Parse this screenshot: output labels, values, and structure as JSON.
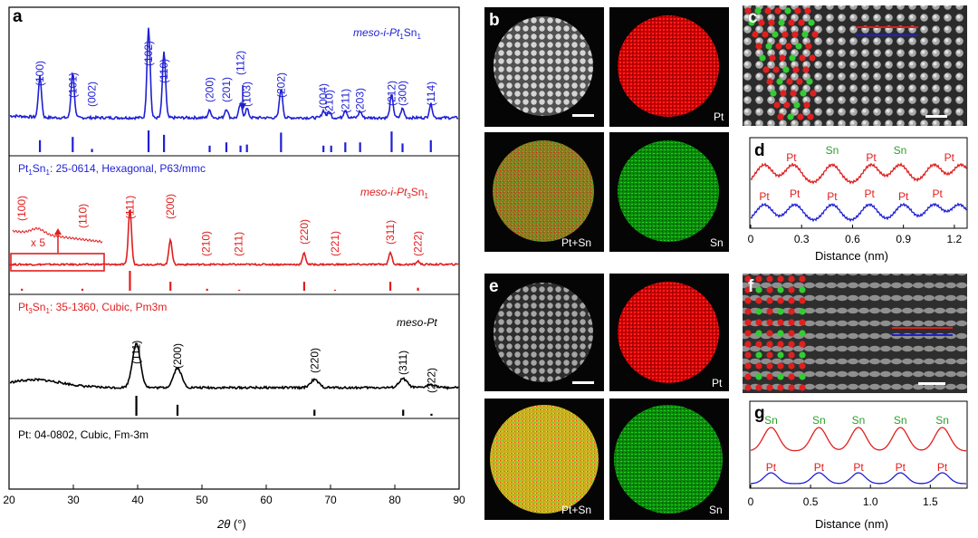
{
  "panels": {
    "a": "a",
    "b": "b",
    "c": "c",
    "d": "d",
    "e": "e",
    "f": "f",
    "g": "g"
  },
  "image_labels": {
    "pt": "Pt",
    "sn": "Sn",
    "ptsn": "Pt+Sn"
  },
  "xrd": {
    "xlabel_italic": "2θ",
    "xlabel_unit": " (°)",
    "xticks": [
      "20",
      "30",
      "40",
      "50",
      "60",
      "70",
      "80",
      "90"
    ],
    "series_labels": {
      "ptsn_prefix": "meso-i-Pt",
      "ptsn_sub1": "1",
      "ptsn_mid": "Sn",
      "ptsn_sub2": "1",
      "pt3sn_prefix": "meso-i-Pt",
      "pt3sn_sub1": "3",
      "pt3sn_mid": "Sn",
      "pt3sn_sub2": "1",
      "pt": "meso-Pt"
    },
    "refs": {
      "ptsn_a": "Pt",
      "ptsn_s1": "1",
      "ptsn_b": "Sn",
      "ptsn_s2": "1",
      "ptsn_c": ": 25-0614, Hexagonal, P63/mmc",
      "pt3sn_a": "Pt",
      "pt3sn_s1": "3",
      "pt3sn_b": "Sn",
      "pt3sn_s2": "1",
      "pt3sn_c": ": 35-1360, Cubic, Pm3m",
      "pt": "Pt: 04-0802, Cubic, Fm-3m"
    },
    "inset_label": "x 5",
    "colors": {
      "ptsn": "#1f1fd6",
      "pt3sn": "#e01e1e",
      "pt": "#000000"
    }
  },
  "chart_data": [
    {
      "type": "line",
      "title": "",
      "xlabel": "2θ (°)",
      "ylabel": "",
      "xlim": [
        20,
        90
      ],
      "series": [
        {
          "name": "meso-i-Pt1Sn1",
          "peaks": [
            {
              "x": 24.8,
              "hkl": "(100)",
              "h": 0.45
            },
            {
              "x": 29.9,
              "hkl": "(101)",
              "h": 0.5
            },
            {
              "x": 32.9,
              "hkl": "(002)",
              "h": 0.0
            },
            {
              "x": 41.7,
              "hkl": "(102)",
              "h": 1.0
            },
            {
              "x": 44.1,
              "hkl": "(110)",
              "h": 0.72
            },
            {
              "x": 51.2,
              "hkl": "(200)",
              "h": 0.08
            },
            {
              "x": 53.8,
              "hkl": "(201)",
              "h": 0.1
            },
            {
              "x": 56.0,
              "hkl": "(112)",
              "h": 0.15
            },
            {
              "x": 57.0,
              "hkl": "(103)",
              "h": 0.1
            },
            {
              "x": 62.3,
              "hkl": "(202)",
              "h": 0.32
            },
            {
              "x": 68.9,
              "hkl": "(004)",
              "h": 0.08
            },
            {
              "x": 69.8,
              "hkl": "(210)",
              "h": 0.07
            },
            {
              "x": 72.3,
              "hkl": "(211)",
              "h": 0.09
            },
            {
              "x": 74.6,
              "hkl": "(203)",
              "h": 0.07
            },
            {
              "x": 79.5,
              "hkl": "(212)",
              "h": 0.25
            },
            {
              "x": 81.2,
              "hkl": "(300)",
              "h": 0.1
            },
            {
              "x": 85.6,
              "hkl": "(114)",
              "h": 0.15
            }
          ],
          "ref_lines": [
            {
              "x": 24.8,
              "h": 0.55
            },
            {
              "x": 29.9,
              "h": 0.7
            },
            {
              "x": 32.9,
              "h": 0.15
            },
            {
              "x": 41.7,
              "h": 1.0
            },
            {
              "x": 44.1,
              "h": 0.8
            },
            {
              "x": 51.2,
              "h": 0.3
            },
            {
              "x": 53.8,
              "h": 0.45
            },
            {
              "x": 56.0,
              "h": 0.3
            },
            {
              "x": 57.0,
              "h": 0.35
            },
            {
              "x": 62.3,
              "h": 0.9
            },
            {
              "x": 68.9,
              "h": 0.3
            },
            {
              "x": 70.1,
              "h": 0.3
            },
            {
              "x": 72.3,
              "h": 0.45
            },
            {
              "x": 74.6,
              "h": 0.45
            },
            {
              "x": 79.5,
              "h": 0.95
            },
            {
              "x": 81.2,
              "h": 0.4
            },
            {
              "x": 85.6,
              "h": 0.55
            }
          ]
        },
        {
          "name": "meso-i-Pt3Sn1",
          "peaks": [
            {
              "x": 22.0,
              "hkl": "(100)",
              "h": 0.0
            },
            {
              "x": 31.5,
              "hkl": "(110)",
              "h": 0.0
            },
            {
              "x": 38.8,
              "hkl": "(111)",
              "h": 1.0
            },
            {
              "x": 45.1,
              "hkl": "(200)",
              "h": 0.45
            },
            {
              "x": 50.6,
              "hkl": "(210)",
              "h": 0.0
            },
            {
              "x": 55.7,
              "hkl": "(211)",
              "h": 0.0
            },
            {
              "x": 65.9,
              "hkl": "(220)",
              "h": 0.2
            },
            {
              "x": 70.7,
              "hkl": "(221)",
              "h": 0.0
            },
            {
              "x": 79.3,
              "hkl": "(311)",
              "h": 0.22
            },
            {
              "x": 83.6,
              "hkl": "(222)",
              "h": 0.06
            }
          ],
          "ref_lines": [
            {
              "x": 22.0,
              "h": 0.1
            },
            {
              "x": 31.4,
              "h": 0.1
            },
            {
              "x": 38.8,
              "h": 1.0
            },
            {
              "x": 45.1,
              "h": 0.45
            },
            {
              "x": 50.8,
              "h": 0.1
            },
            {
              "x": 55.8,
              "h": 0.05
            },
            {
              "x": 65.9,
              "h": 0.45
            },
            {
              "x": 70.7,
              "h": 0.05
            },
            {
              "x": 79.3,
              "h": 0.45
            },
            {
              "x": 83.6,
              "h": 0.15
            }
          ]
        },
        {
          "name": "meso-Pt",
          "peaks": [
            {
              "x": 39.8,
              "hkl": "(111)",
              "h": 1.0
            },
            {
              "x": 46.2,
              "hkl": "(200)",
              "h": 0.45
            },
            {
              "x": 67.5,
              "hkl": "(220)",
              "h": 0.18
            },
            {
              "x": 81.3,
              "hkl": "(311)",
              "h": 0.2
            },
            {
              "x": 85.7,
              "hkl": "(222)",
              "h": 0.08
            }
          ],
          "ref_lines": [
            {
              "x": 39.8,
              "h": 1.0
            },
            {
              "x": 46.2,
              "h": 0.55
            },
            {
              "x": 67.5,
              "h": 0.3
            },
            {
              "x": 81.3,
              "h": 0.3
            },
            {
              "x": 85.7,
              "h": 0.1
            }
          ]
        }
      ]
    },
    {
      "type": "line",
      "title": "",
      "xlabel": "Distance (nm)",
      "xticks": [
        "0",
        "0.3",
        "0.6",
        "0.9",
        "1.2"
      ],
      "xlim": [
        0,
        1.27
      ],
      "series": [
        {
          "name": "Pt-Sn (red)",
          "peaks_x": [
            0.08,
            0.25,
            0.48,
            0.71,
            0.88,
            1.08,
            1.24
          ],
          "labels": [
            "Pt",
            "Pt",
            "Sn",
            "Pt",
            "Sn",
            "Pt",
            "Pt"
          ]
        },
        {
          "name": "Pt (blue)",
          "peaks_x": [
            0.08,
            0.26,
            0.48,
            0.7,
            0.9,
            1.08,
            1.23
          ],
          "labels": [
            "Pt",
            "Pt",
            "Pt",
            "Pt",
            "Pt",
            "Pt",
            "Pt"
          ]
        }
      ]
    },
    {
      "type": "line",
      "title": "",
      "xlabel": "Distance (nm)",
      "xticks": [
        "0",
        "0.5",
        "1.0",
        "1.5"
      ],
      "xlim": [
        0,
        1.8
      ],
      "series": [
        {
          "name": "Sn (red)",
          "peaks_x": [
            0.17,
            0.57,
            0.9,
            1.25,
            1.6
          ],
          "labels": [
            "Sn",
            "Sn",
            "Sn",
            "Sn",
            "Sn"
          ]
        },
        {
          "name": "Pt (blue)",
          "peaks_x": [
            0.17,
            0.57,
            0.9,
            1.25,
            1.6
          ],
          "labels": [
            "Pt",
            "Pt",
            "Pt",
            "Pt",
            "Pt"
          ]
        }
      ]
    }
  ],
  "d_labels": {
    "red": [
      "Pt",
      "Sn",
      "Pt",
      "Sn",
      "Pt"
    ],
    "blue": [
      "Pt",
      "Pt",
      "Pt",
      "Pt",
      "Pt",
      "Pt"
    ]
  },
  "g_labels": {
    "red": [
      "Sn",
      "Sn",
      "Sn",
      "Sn",
      "Sn"
    ],
    "blue": [
      "Pt",
      "Pt",
      "Pt",
      "Pt",
      "Pt"
    ]
  }
}
